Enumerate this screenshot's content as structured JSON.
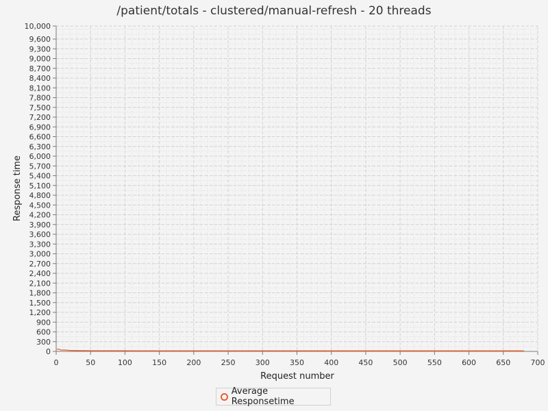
{
  "chart_data": {
    "type": "line",
    "title": "/patient/totals - clustered/manual-refresh - 20 threads",
    "xlabel": "Request number",
    "ylabel": "Response time",
    "xlim": [
      0,
      700
    ],
    "ylim": [
      0,
      10000
    ],
    "x_ticks": [
      0,
      50,
      100,
      150,
      200,
      250,
      300,
      350,
      400,
      450,
      500,
      550,
      600,
      650,
      700
    ],
    "x_tick_labels": [
      "0",
      "50",
      "100",
      "150",
      "200",
      "250",
      "300",
      "350",
      "400",
      "450",
      "500",
      "550",
      "600",
      "650",
      "700"
    ],
    "y_ticks": [
      0,
      300,
      600,
      900,
      1200,
      1500,
      1800,
      2100,
      2400,
      2700,
      3000,
      3300,
      3600,
      3900,
      4200,
      4500,
      4800,
      5100,
      5400,
      5700,
      6000,
      6300,
      6600,
      6900,
      7200,
      7500,
      7800,
      8100,
      8400,
      8700,
      9000,
      9300,
      9600,
      10000
    ],
    "y_tick_labels": [
      "0",
      "300",
      "600",
      "900",
      "1,200",
      "1,500",
      "1,800",
      "2,100",
      "2,400",
      "2,700",
      "3,000",
      "3,300",
      "3,600",
      "3,900",
      "4,200",
      "4,500",
      "4,800",
      "5,100",
      "5,400",
      "5,700",
      "6,000",
      "6,300",
      "6,600",
      "6,900",
      "7,200",
      "7,500",
      "7,800",
      "8,100",
      "8,400",
      "8,700",
      "9,000",
      "9,300",
      "9,600",
      "10,000"
    ],
    "grid": true,
    "legend_position": "bottom-center",
    "series": [
      {
        "name": "Average Responsetime",
        "color": "#f05a28",
        "x": [
          1,
          3,
          5,
          8,
          12,
          16,
          20,
          25,
          30,
          40,
          50,
          60,
          80,
          100,
          120,
          150,
          200,
          250,
          300,
          350,
          400,
          450,
          500,
          550,
          600,
          650,
          680
        ],
        "y": [
          60,
          75,
          55,
          40,
          45,
          35,
          30,
          28,
          25,
          24,
          22,
          21,
          20,
          20,
          19,
          19,
          18,
          18,
          18,
          18,
          17,
          17,
          17,
          17,
          17,
          17,
          17
        ]
      }
    ]
  }
}
